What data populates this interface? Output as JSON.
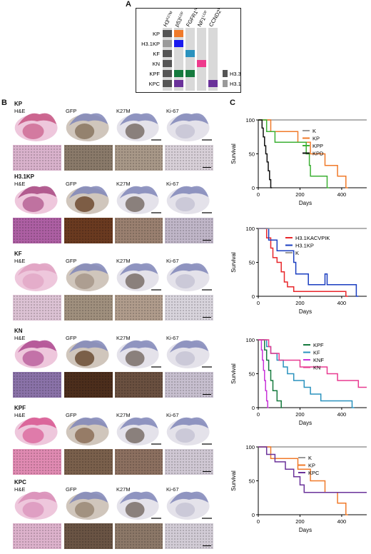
{
  "panels": {
    "a": "A",
    "b": "B",
    "c": "C"
  },
  "panel_a": {
    "columns": [
      "H3K27M",
      "p53LOF",
      "FGFR1N457K",
      "NF1LOF",
      "CCND2WT"
    ],
    "column_parts": [
      {
        "base": "H3",
        "sup": "K27M"
      },
      {
        "base": "p53",
        "sup": "LOF"
      },
      {
        "base": "FGFR1",
        "sup": "N457K"
      },
      {
        "base": "NF1",
        "sup": "LOF"
      },
      {
        "base": "CCND2",
        "sup": "WT"
      }
    ],
    "rows": [
      "KP",
      "H3.1KP",
      "KF",
      "KN",
      "KPF",
      "KPC"
    ],
    "legend": [
      "H3.3",
      "H3.1"
    ],
    "colors": {
      "h33": "#555555",
      "h31": "#9a9a9a",
      "p53": "#f07a2a",
      "p53_h31": "#1a1aee",
      "fgfr1": "#2a92be",
      "nf1": "#ee3a8c",
      "kpf": "#157a3e",
      "kpc": "#6a329a",
      "bg": "#d9d9d9"
    }
  },
  "panel_b": {
    "stains": [
      "H&E",
      "GFP",
      "K27M",
      "Ki-67"
    ],
    "groups": [
      "KP",
      "H3.1KP",
      "KF",
      "KN",
      "KPF",
      "KPC"
    ]
  },
  "panel_c": {
    "ylabel": "Survival",
    "xlabel": "Days",
    "yticks": [
      "0",
      "50",
      "100"
    ],
    "xticks": [
      "0",
      "200",
      "400"
    ]
  },
  "chart_data": [
    {
      "type": "line",
      "ylabel": "Survival",
      "xlabel": "Days",
      "xlim": [
        0,
        520
      ],
      "ylim": [
        0,
        100
      ],
      "series": [
        {
          "name": "K",
          "color": "#999999",
          "points": [
            [
              0,
              100
            ],
            [
              520,
              100
            ]
          ]
        },
        {
          "name": "KP",
          "color": "#f07a2a",
          "points": [
            [
              0,
              100
            ],
            [
              60,
              100
            ],
            [
              60,
              83
            ],
            [
              190,
              83
            ],
            [
              190,
              67
            ],
            [
              250,
              67
            ],
            [
              250,
              50
            ],
            [
              320,
              50
            ],
            [
              320,
              33
            ],
            [
              380,
              33
            ],
            [
              380,
              17
            ],
            [
              420,
              17
            ],
            [
              420,
              0
            ],
            [
              430,
              0
            ]
          ]
        },
        {
          "name": "KPP",
          "color": "#3cb034",
          "points": [
            [
              0,
              100
            ],
            [
              40,
              100
            ],
            [
              40,
              83
            ],
            [
              80,
              83
            ],
            [
              80,
              67
            ],
            [
              230,
              67
            ],
            [
              230,
              50
            ],
            [
              245,
              50
            ],
            [
              245,
              33
            ],
            [
              250,
              33
            ],
            [
              250,
              17
            ],
            [
              330,
              17
            ],
            [
              330,
              0
            ],
            [
              340,
              0
            ]
          ]
        },
        {
          "name": "KPD",
          "color": "#111111",
          "points": [
            [
              0,
              100
            ],
            [
              18,
              100
            ],
            [
              18,
              88
            ],
            [
              24,
              88
            ],
            [
              24,
              75
            ],
            [
              30,
              75
            ],
            [
              30,
              62
            ],
            [
              36,
              62
            ],
            [
              36,
              50
            ],
            [
              42,
              50
            ],
            [
              42,
              38
            ],
            [
              48,
              38
            ],
            [
              48,
              25
            ],
            [
              54,
              25
            ],
            [
              54,
              12
            ],
            [
              60,
              12
            ],
            [
              60,
              0
            ],
            [
              66,
              0
            ]
          ]
        }
      ]
    },
    {
      "type": "line",
      "ylabel": "Survival",
      "xlabel": "Days",
      "xlim": [
        0,
        520
      ],
      "ylim": [
        0,
        100
      ],
      "series": [
        {
          "name": "H3.1KACVPIK",
          "color": "#e8262a",
          "points": [
            [
              0,
              100
            ],
            [
              40,
              100
            ],
            [
              40,
              86
            ],
            [
              60,
              86
            ],
            [
              60,
              71
            ],
            [
              70,
              71
            ],
            [
              70,
              57
            ],
            [
              90,
              57
            ],
            [
              90,
              50
            ],
            [
              110,
              50
            ],
            [
              110,
              36
            ],
            [
              125,
              36
            ],
            [
              125,
              21
            ],
            [
              140,
              21
            ],
            [
              140,
              14
            ],
            [
              170,
              14
            ],
            [
              170,
              7
            ],
            [
              420,
              7
            ],
            [
              420,
              0
            ],
            [
              430,
              0
            ]
          ]
        },
        {
          "name": "H3.1KP",
          "color": "#1a3ec0",
          "points": [
            [
              0,
              100
            ],
            [
              50,
              100
            ],
            [
              50,
              83
            ],
            [
              90,
              83
            ],
            [
              90,
              67
            ],
            [
              170,
              67
            ],
            [
              170,
              50
            ],
            [
              180,
              50
            ],
            [
              180,
              33
            ],
            [
              240,
              33
            ],
            [
              240,
              17
            ],
            [
              320,
              17
            ],
            [
              320,
              33
            ],
            [
              330,
              33
            ],
            [
              330,
              17
            ],
            [
              470,
              17
            ],
            [
              470,
              0
            ],
            [
              480,
              0
            ]
          ]
        },
        {
          "name": "K",
          "color": "#999999",
          "points": [
            [
              0,
              100
            ],
            [
              520,
              100
            ]
          ]
        }
      ]
    },
    {
      "type": "line",
      "ylabel": "Survival",
      "xlabel": "Days",
      "xlim": [
        0,
        520
      ],
      "ylim": [
        0,
        100
      ],
      "series": [
        {
          "name": "KPF",
          "color": "#157a3e",
          "points": [
            [
              0,
              100
            ],
            [
              30,
              100
            ],
            [
              30,
              85
            ],
            [
              40,
              85
            ],
            [
              40,
              70
            ],
            [
              50,
              70
            ],
            [
              50,
              55
            ],
            [
              60,
              55
            ],
            [
              60,
              40
            ],
            [
              70,
              40
            ],
            [
              70,
              25
            ],
            [
              90,
              25
            ],
            [
              90,
              10
            ],
            [
              110,
              10
            ],
            [
              110,
              0
            ],
            [
              115,
              0
            ]
          ]
        },
        {
          "name": "KF",
          "color": "#2a92be",
          "points": [
            [
              0,
              100
            ],
            [
              40,
              100
            ],
            [
              40,
              90
            ],
            [
              60,
              90
            ],
            [
              60,
              80
            ],
            [
              90,
              80
            ],
            [
              90,
              70
            ],
            [
              120,
              70
            ],
            [
              120,
              60
            ],
            [
              140,
              60
            ],
            [
              140,
              50
            ],
            [
              170,
              50
            ],
            [
              170,
              40
            ],
            [
              220,
              40
            ],
            [
              220,
              30
            ],
            [
              250,
              30
            ],
            [
              250,
              20
            ],
            [
              300,
              20
            ],
            [
              300,
              10
            ],
            [
              450,
              10
            ],
            [
              450,
              0
            ],
            [
              460,
              0
            ]
          ]
        },
        {
          "name": "KNF",
          "color": "#c832d8",
          "points": [
            [
              0,
              100
            ],
            [
              15,
              100
            ],
            [
              15,
              85
            ],
            [
              20,
              85
            ],
            [
              20,
              70
            ],
            [
              25,
              70
            ],
            [
              25,
              55
            ],
            [
              30,
              55
            ],
            [
              30,
              40
            ],
            [
              35,
              40
            ],
            [
              35,
              25
            ],
            [
              40,
              25
            ],
            [
              40,
              10
            ],
            [
              45,
              10
            ],
            [
              45,
              0
            ],
            [
              50,
              0
            ]
          ]
        },
        {
          "name": "KN",
          "color": "#e83a90",
          "points": [
            [
              0,
              100
            ],
            [
              50,
              100
            ],
            [
              50,
              90
            ],
            [
              60,
              90
            ],
            [
              60,
              80
            ],
            [
              100,
              80
            ],
            [
              100,
              70
            ],
            [
              200,
              70
            ],
            [
              200,
              60
            ],
            [
              330,
              60
            ],
            [
              330,
              50
            ],
            [
              380,
              50
            ],
            [
              380,
              40
            ],
            [
              480,
              40
            ],
            [
              480,
              30
            ],
            [
              520,
              30
            ]
          ]
        }
      ]
    },
    {
      "type": "line",
      "ylabel": "Survival",
      "xlabel": "Days",
      "xlim": [
        0,
        520
      ],
      "ylim": [
        0,
        100
      ],
      "series": [
        {
          "name": "K",
          "color": "#999999",
          "points": [
            [
              0,
              100
            ],
            [
              520,
              100
            ]
          ]
        },
        {
          "name": "KP",
          "color": "#f07a2a",
          "points": [
            [
              0,
              100
            ],
            [
              60,
              100
            ],
            [
              60,
              83
            ],
            [
              190,
              83
            ],
            [
              190,
              67
            ],
            [
              250,
              67
            ],
            [
              250,
              50
            ],
            [
              320,
              50
            ],
            [
              320,
              33
            ],
            [
              380,
              33
            ],
            [
              380,
              17
            ],
            [
              420,
              17
            ],
            [
              420,
              0
            ],
            [
              430,
              0
            ]
          ]
        },
        {
          "name": "KPC",
          "color": "#6a329a",
          "points": [
            [
              0,
              100
            ],
            [
              40,
              100
            ],
            [
              40,
              89
            ],
            [
              80,
              89
            ],
            [
              80,
              78
            ],
            [
              130,
              78
            ],
            [
              130,
              67
            ],
            [
              170,
              67
            ],
            [
              170,
              56
            ],
            [
              200,
              56
            ],
            [
              200,
              44
            ],
            [
              220,
              44
            ],
            [
              220,
              33
            ],
            [
              520,
              33
            ]
          ]
        }
      ]
    }
  ]
}
